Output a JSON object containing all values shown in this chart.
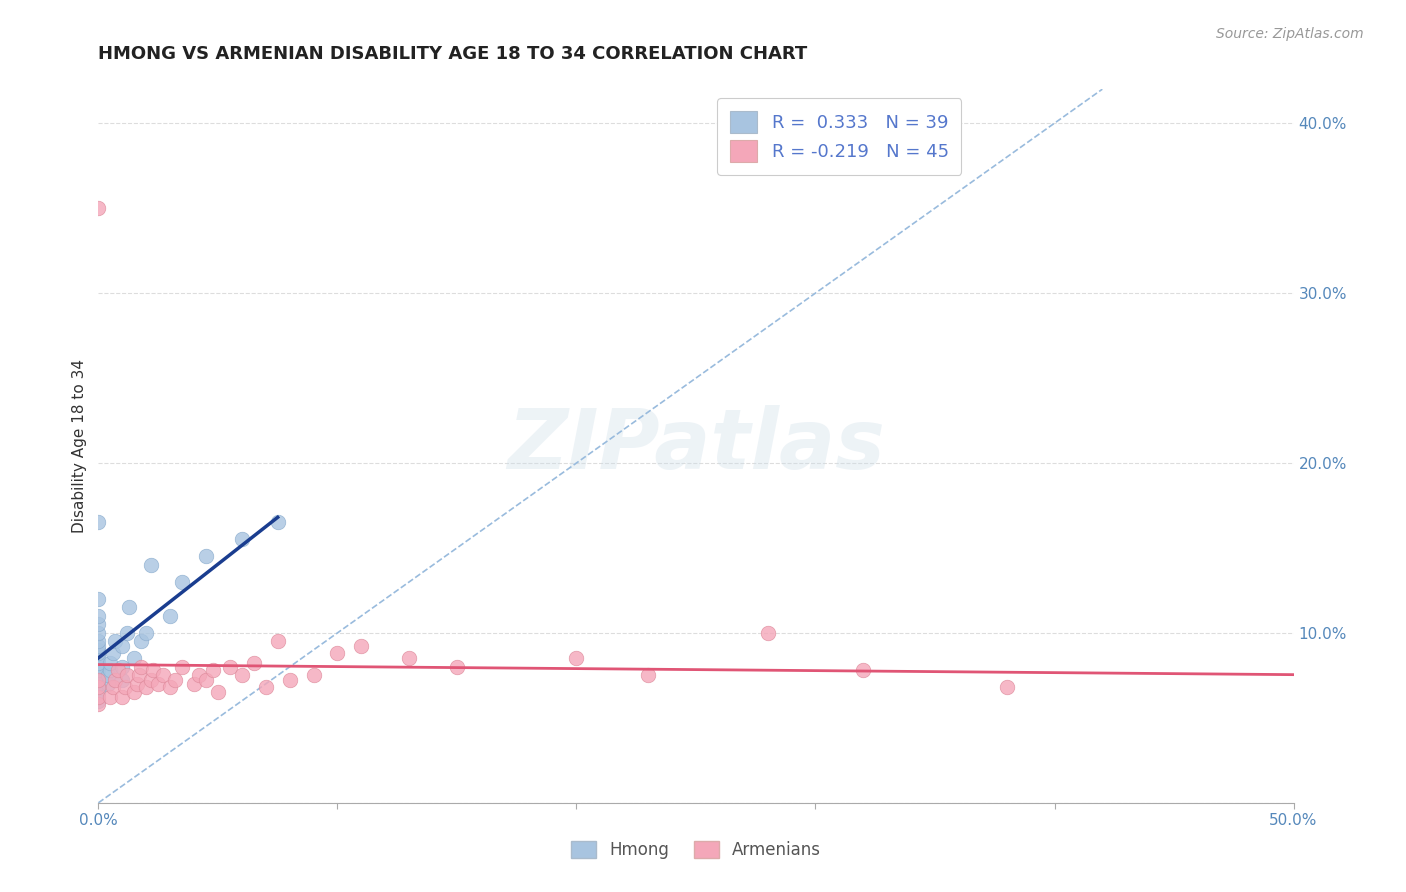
{
  "title": "HMONG VS ARMENIAN DISABILITY AGE 18 TO 34 CORRELATION CHART",
  "source": "Source: ZipAtlas.com",
  "ylabel": "Disability Age 18 to 34",
  "xlim": [
    0.0,
    0.5
  ],
  "ylim": [
    0.0,
    0.42
  ],
  "xticks": [
    0.0,
    0.1,
    0.2,
    0.3,
    0.4,
    0.5
  ],
  "xticklabels": [
    "0.0%",
    "",
    "",
    "",
    "",
    "50.0%"
  ],
  "yticks": [
    0.0,
    0.1,
    0.2,
    0.3,
    0.4
  ],
  "yticklabels": [
    "",
    "10.0%",
    "20.0%",
    "30.0%",
    "40.0%"
  ],
  "hmong_color": "#a8c4e0",
  "armenian_color": "#f4a7b9",
  "hmong_line_color": "#1a3d8f",
  "armenian_line_color": "#e05575",
  "diag_line_color": "#99bbdd",
  "R_hmong": 0.333,
  "N_hmong": 39,
  "R_armenian": -0.219,
  "N_armenian": 45,
  "background_color": "#ffffff",
  "grid_color": "#dddddd",
  "hmong_x": [
    0.0,
    0.0,
    0.0,
    0.0,
    0.0,
    0.0,
    0.0,
    0.0,
    0.0,
    0.0,
    0.0,
    0.0,
    0.0,
    0.0,
    0.0,
    0.0,
    0.0,
    0.0,
    0.0,
    0.004,
    0.004,
    0.005,
    0.005,
    0.006,
    0.007,
    0.01,
    0.01,
    0.01,
    0.012,
    0.013,
    0.015,
    0.018,
    0.02,
    0.022,
    0.03,
    0.035,
    0.045,
    0.06,
    0.075
  ],
  "hmong_y": [
    0.06,
    0.065,
    0.07,
    0.07,
    0.072,
    0.075,
    0.078,
    0.08,
    0.082,
    0.085,
    0.088,
    0.09,
    0.092,
    0.095,
    0.1,
    0.105,
    0.11,
    0.12,
    0.165,
    0.07,
    0.075,
    0.078,
    0.082,
    0.088,
    0.095,
    0.072,
    0.08,
    0.092,
    0.1,
    0.115,
    0.085,
    0.095,
    0.1,
    0.14,
    0.11,
    0.13,
    0.145,
    0.155,
    0.165
  ],
  "armenian_x": [
    0.0,
    0.0,
    0.0,
    0.0,
    0.0,
    0.005,
    0.006,
    0.007,
    0.008,
    0.01,
    0.011,
    0.012,
    0.015,
    0.016,
    0.017,
    0.018,
    0.02,
    0.022,
    0.023,
    0.025,
    0.027,
    0.03,
    0.032,
    0.035,
    0.04,
    0.042,
    0.045,
    0.048,
    0.05,
    0.055,
    0.06,
    0.065,
    0.07,
    0.075,
    0.08,
    0.09,
    0.1,
    0.11,
    0.13,
    0.15,
    0.2,
    0.23,
    0.28,
    0.32,
    0.38
  ],
  "armenian_y": [
    0.058,
    0.062,
    0.068,
    0.072,
    0.35,
    0.062,
    0.068,
    0.072,
    0.078,
    0.062,
    0.068,
    0.075,
    0.065,
    0.07,
    0.075,
    0.08,
    0.068,
    0.072,
    0.078,
    0.07,
    0.075,
    0.068,
    0.072,
    0.08,
    0.07,
    0.075,
    0.072,
    0.078,
    0.065,
    0.08,
    0.075,
    0.082,
    0.068,
    0.095,
    0.072,
    0.075,
    0.088,
    0.092,
    0.085,
    0.08,
    0.085,
    0.075,
    0.1,
    0.078,
    0.068
  ]
}
